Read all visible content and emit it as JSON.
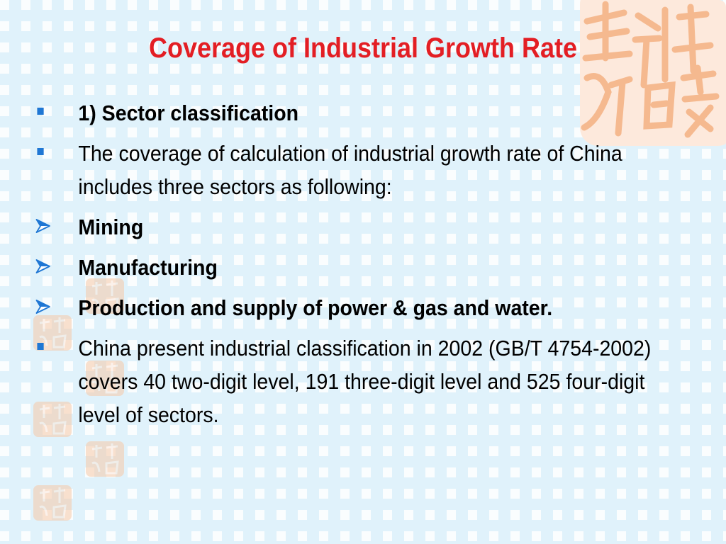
{
  "slide": {
    "title": "Coverage  of Industrial Growth Rate",
    "bullets": [
      {
        "marker": "square",
        "text": "1) Sector classification",
        "bold": true
      },
      {
        "marker": "square",
        "text": "The coverage of calculation of industrial growth rate of China includes three sectors as following:",
        "bold": false
      },
      {
        "marker": "arrow",
        "text": "Mining",
        "bold": true
      },
      {
        "marker": "arrow",
        "text": "Manufacturing",
        "bold": true
      },
      {
        "marker": "arrow",
        "text": "Production and supply of power & gas and water.",
        "bold": true
      },
      {
        "marker": "square",
        "text": "China present industrial classification in 2002 (GB/T 4754-2002) covers 40 two-digit level, 191 three-digit level and 525 four-digit level of sectors.",
        "bold": false
      }
    ]
  },
  "colors": {
    "background": "#e0f2fb",
    "title": "#e31e24",
    "bullet_marker": "#1f77d4",
    "stamp": "#f7c9a8"
  },
  "icons": {
    "square_bullet": "square-bullet-icon",
    "arrow_bullet": "arrow-bullet-icon",
    "stamp": "seal-stamp-icon"
  }
}
